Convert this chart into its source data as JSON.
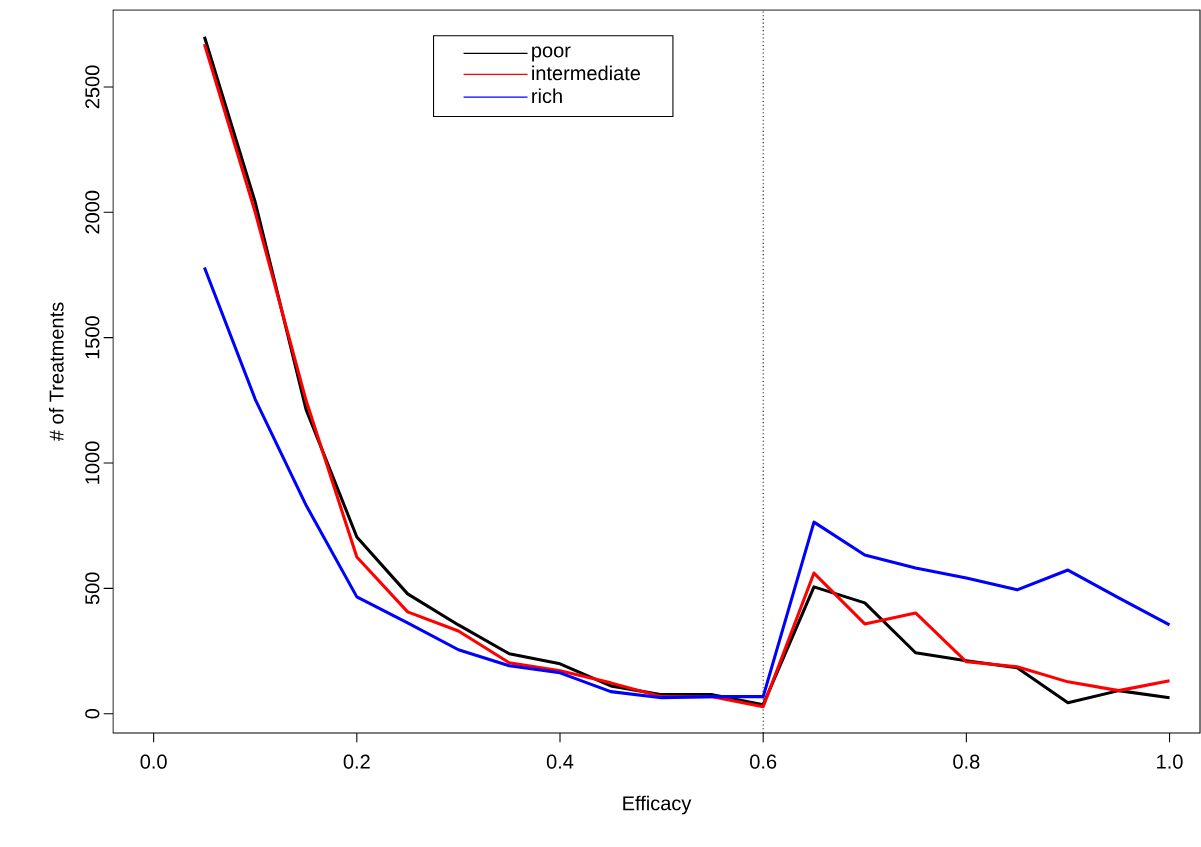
{
  "chart_data": {
    "type": "line",
    "xlabel": "Efficacy",
    "ylabel": "# of Treatments",
    "x": [
      0.05,
      0.1,
      0.15,
      0.2,
      0.25,
      0.3,
      0.35,
      0.4,
      0.45,
      0.5,
      0.55,
      0.6,
      0.65,
      0.7,
      0.75,
      0.8,
      0.85,
      0.9,
      0.95,
      1.0
    ],
    "series": [
      {
        "name": "poor",
        "color": "#000000",
        "values": [
          2700,
          2040,
          1214,
          705,
          478,
          354,
          239,
          199,
          111,
          76,
          76,
          36,
          506,
          442,
          243,
          211,
          183,
          44,
          92,
          64
        ]
      },
      {
        "name": "intermediate",
        "color": "#ff0000",
        "values": [
          2671,
          2000,
          1250,
          625,
          406,
          330,
          203,
          171,
          123,
          68,
          68,
          28,
          561,
          358,
          402,
          207,
          187,
          127,
          92,
          131
        ]
      },
      {
        "name": "rich",
        "color": "#0000ff",
        "values": [
          1780,
          1254,
          832,
          466,
          362,
          255,
          191,
          163,
          88,
          64,
          68,
          68,
          764,
          633,
          581,
          541,
          494,
          573,
          462,
          354
        ]
      }
    ],
    "xlim": [
      -0.04,
      1.03
    ],
    "ylim": [
      -77,
      2807
    ],
    "xticks": [
      {
        "value": 0,
        "label": "0.0"
      },
      0.2,
      0.4,
      0.6,
      0.8,
      {
        "value": 1,
        "label": "1.0"
      }
    ],
    "yticks": [
      0,
      500,
      1000,
      1500,
      2000,
      2500
    ],
    "ref_lines": [
      {
        "axis": "x",
        "value": 0.6,
        "color": "#000000",
        "line_style": "dotted"
      }
    ],
    "legend": "top"
  }
}
